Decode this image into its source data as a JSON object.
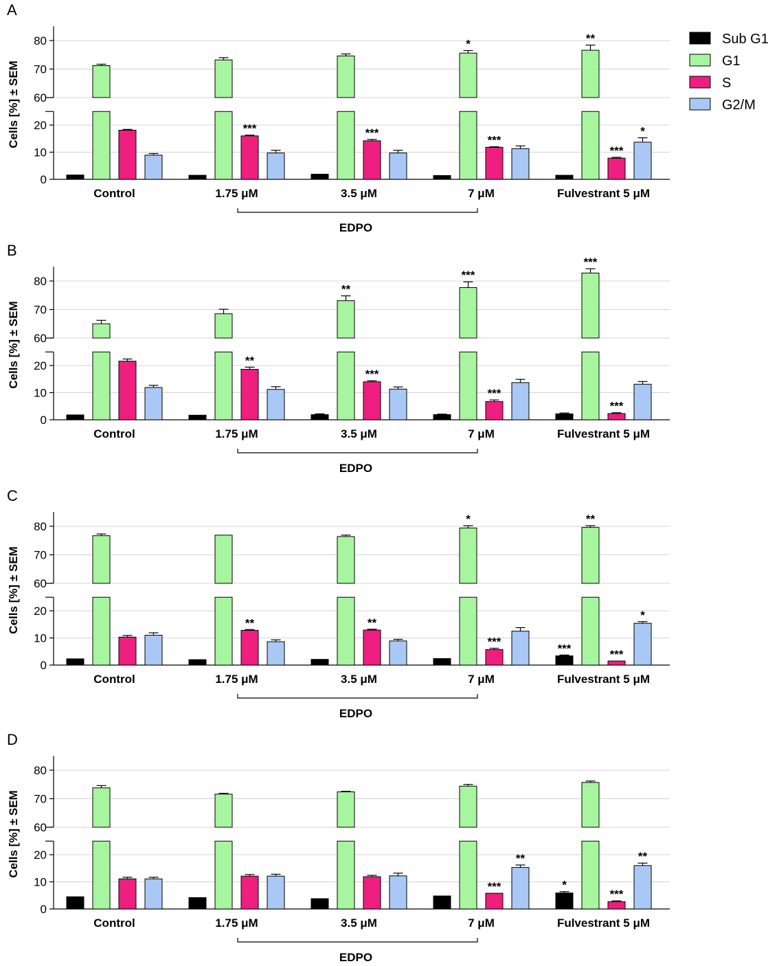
{
  "colors": {
    "Sub G1": "#000000",
    "G1": "#a8f5a0",
    "S": "#ee1f7e",
    "G2/M": "#a9c8f5"
  },
  "legend": [
    "Sub G1",
    "G1",
    "S",
    "G2/M"
  ],
  "group_label": "EDPO",
  "chart_data": [
    {
      "type": "bar",
      "panel": "A",
      "ylabel": "Cells [%] ± SEM",
      "categories": [
        "Control",
        "1.75 μM",
        "3.5 μM",
        "7 μM",
        "Fulvestrant 5 μM"
      ],
      "axis_breaks": {
        "lower": [
          0,
          25
        ],
        "upper": [
          60,
          85
        ]
      },
      "lower_ticks": [
        0,
        10,
        20
      ],
      "upper_ticks": [
        60,
        70,
        80
      ],
      "grid": true,
      "series": [
        {
          "name": "Sub G1",
          "values": [
            1.6,
            1.5,
            1.9,
            1.4,
            1.5
          ],
          "errors": [
            0,
            0,
            0,
            0,
            0
          ],
          "sig": [
            "",
            "",
            "",
            "",
            ""
          ]
        },
        {
          "name": "G1",
          "values": [
            71.2,
            73.2,
            74.6,
            75.6,
            76.6
          ],
          "errors": [
            0.5,
            0.8,
            0.7,
            0.9,
            1.8
          ],
          "sig": [
            "",
            "",
            "",
            "*",
            "**"
          ]
        },
        {
          "name": "S",
          "values": [
            18.1,
            16.0,
            14.2,
            11.8,
            7.8
          ],
          "errors": [
            0.3,
            0.3,
            0.5,
            0.2,
            0.3
          ],
          "sig": [
            "",
            "***",
            "***",
            "***",
            "***"
          ]
        },
        {
          "name": "G2/M",
          "values": [
            8.9,
            9.7,
            9.7,
            11.3,
            13.7
          ],
          "errors": [
            0.6,
            1.0,
            1.0,
            1.0,
            1.6
          ],
          "sig": [
            "",
            "",
            "",
            "",
            "*"
          ]
        }
      ]
    },
    {
      "type": "bar",
      "panel": "B",
      "ylabel": "Cells [%] ± SEM",
      "categories": [
        "Control",
        "1.75 μM",
        "3.5 μM",
        "7 μM",
        "Fulvestrant 5 μM"
      ],
      "axis_breaks": {
        "lower": [
          0,
          25
        ],
        "upper": [
          60,
          85
        ]
      },
      "lower_ticks": [
        0,
        10,
        20
      ],
      "upper_ticks": [
        60,
        70,
        80
      ],
      "grid": true,
      "series": [
        {
          "name": "Sub G1",
          "values": [
            1.8,
            1.7,
            1.9,
            1.9,
            2.2
          ],
          "errors": [
            0,
            0,
            0.3,
            0.2,
            0.3
          ],
          "sig": [
            "",
            "",
            "",
            "",
            ""
          ]
        },
        {
          "name": "G1",
          "values": [
            65.0,
            68.5,
            73.1,
            77.7,
            82.8
          ],
          "errors": [
            1.2,
            1.6,
            1.7,
            2.0,
            1.5
          ],
          "sig": [
            "",
            "",
            "**",
            "***",
            "***"
          ]
        },
        {
          "name": "S",
          "values": [
            21.6,
            18.6,
            14.0,
            6.7,
            2.3
          ],
          "errors": [
            0.8,
            0.8,
            0.4,
            0.6,
            0.3
          ],
          "sig": [
            "",
            "**",
            "***",
            "***",
            "***"
          ]
        },
        {
          "name": "G2/M",
          "values": [
            11.9,
            11.2,
            11.3,
            13.7,
            13.1
          ],
          "errors": [
            0.8,
            1.0,
            0.8,
            1.2,
            1.0
          ],
          "sig": [
            "",
            "",
            "",
            "",
            ""
          ]
        }
      ]
    },
    {
      "type": "bar",
      "panel": "C",
      "ylabel": "Cells [%] ± SEM",
      "categories": [
        "Control",
        "1.75 μM",
        "3.5 μM",
        "7 μM",
        "Fulvestrant 5 μM"
      ],
      "axis_breaks": {
        "lower": [
          0,
          25
        ],
        "upper": [
          60,
          85
        ]
      },
      "lower_ticks": [
        0,
        10,
        20
      ],
      "upper_ticks": [
        60,
        70,
        80
      ],
      "grid": true,
      "series": [
        {
          "name": "Sub G1",
          "values": [
            2.3,
            2.0,
            2.1,
            2.4,
            3.4
          ],
          "errors": [
            0,
            0,
            0,
            0,
            0.3
          ],
          "sig": [
            "",
            "",
            "",
            "",
            "***"
          ]
        },
        {
          "name": "G1",
          "values": [
            76.7,
            76.9,
            76.4,
            79.4,
            79.6
          ],
          "errors": [
            0.6,
            0,
            0.5,
            0.8,
            0.6
          ],
          "sig": [
            "",
            "",
            "",
            "*",
            "**"
          ]
        },
        {
          "name": "S",
          "values": [
            10.3,
            12.8,
            12.9,
            5.7,
            1.5
          ],
          "errors": [
            0.6,
            0.3,
            0.3,
            0.5,
            0
          ],
          "sig": [
            "",
            "**",
            "**",
            "***",
            "***"
          ]
        },
        {
          "name": "G2/M",
          "values": [
            11.0,
            8.6,
            8.9,
            12.5,
            15.4
          ],
          "errors": [
            0.9,
            0.7,
            0.6,
            1.3,
            0.6
          ],
          "sig": [
            "",
            "",
            "",
            "",
            "*"
          ]
        }
      ]
    },
    {
      "type": "bar",
      "panel": "D",
      "ylabel": "Cells [%] ± SEM",
      "categories": [
        "Control",
        "1.75 μM",
        "3.5 μM",
        "7 μM",
        "Fulvestrant 5 μM"
      ],
      "axis_breaks": {
        "lower": [
          0,
          25
        ],
        "upper": [
          60,
          85
        ]
      },
      "lower_ticks": [
        0,
        10,
        20
      ],
      "upper_ticks": [
        60,
        70,
        80
      ],
      "grid": true,
      "series": [
        {
          "name": "Sub G1",
          "values": [
            4.5,
            4.2,
            3.8,
            4.8,
            5.9
          ],
          "errors": [
            0,
            0,
            0,
            0,
            0.5
          ],
          "sig": [
            "",
            "",
            "",
            "",
            "*"
          ]
        },
        {
          "name": "G1",
          "values": [
            73.8,
            71.6,
            72.4,
            74.4,
            75.7
          ],
          "errors": [
            0.8,
            0.3,
            0.2,
            0.6,
            0.5
          ],
          "sig": [
            "",
            "",
            "",
            "",
            ""
          ]
        },
        {
          "name": "S",
          "values": [
            11.1,
            12.1,
            11.9,
            5.8,
            2.7
          ],
          "errors": [
            0.6,
            0.6,
            0.5,
            0,
            0.3
          ],
          "sig": [
            "",
            "",
            "",
            "***",
            "***"
          ]
        },
        {
          "name": "G2/M",
          "values": [
            11.1,
            12.1,
            12.2,
            15.3,
            16.0
          ],
          "errors": [
            0.6,
            0.7,
            1.0,
            0.9,
            0.9
          ],
          "sig": [
            "",
            "",
            "",
            "**",
            "**"
          ]
        }
      ]
    }
  ]
}
